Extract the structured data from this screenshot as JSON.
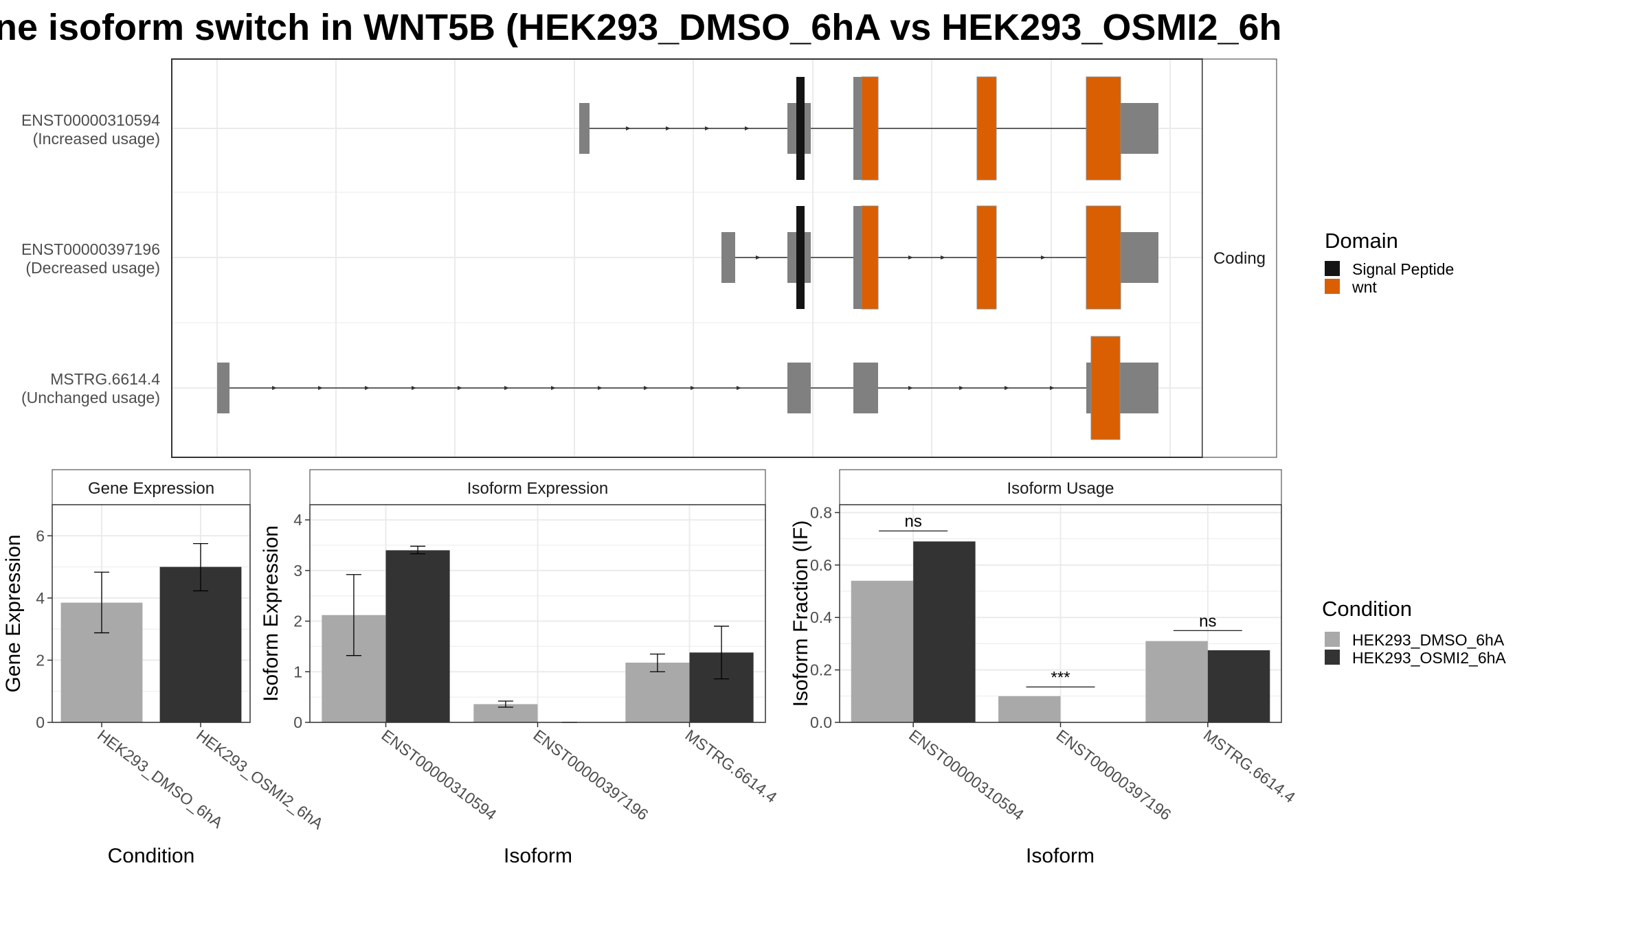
{
  "title": "ne isoform switch in WNT5B (HEK293_DMSO_6hA vs HEK293_OSMI2_6h",
  "colors": {
    "condition1": "#a9a9a9",
    "condition2": "#333333",
    "utr": "#808080",
    "signal_peptide": "#141414",
    "wnt": "#d95f02",
    "grid": "#ebebeb",
    "panel_border": "#333333",
    "strip_fill": "#ffffff"
  },
  "structure": {
    "facet_label": "Coding",
    "tracks": [
      {
        "id": "ENST00000310594",
        "usage": "(Increased usage)"
      },
      {
        "id": "ENST00000397196",
        "usage": "(Decreased usage)"
      },
      {
        "id": "MSTRG.6614.4",
        "usage": "(Unchanged usage)"
      }
    ]
  },
  "domain_legend": {
    "title": "Domain",
    "items": [
      {
        "label": "Signal Peptide",
        "color": "#141414"
      },
      {
        "label": "wnt",
        "color": "#d95f02"
      }
    ]
  },
  "condition_legend": {
    "title": "Condition",
    "items": [
      {
        "label": "HEK293_DMSO_6hA",
        "color": "#a9a9a9"
      },
      {
        "label": "HEK293_OSMI2_6hA",
        "color": "#333333"
      }
    ]
  },
  "chart_data": [
    {
      "type": "bar",
      "title": "Gene Expression",
      "xlabel": "Condition",
      "ylabel": "Gene Expression",
      "ylim": [
        0,
        7
      ],
      "yticks": [
        0,
        2,
        4,
        6
      ],
      "categories": [
        "HEK293_DMSO_6hA",
        "HEK293_OSMI2_6hA"
      ],
      "values": [
        3.85,
        5.0
      ],
      "errors": [
        [
          2.88,
          4.83
        ],
        [
          4.23,
          5.75
        ]
      ]
    },
    {
      "type": "bar",
      "title": "Isoform Expression",
      "xlabel": "Isoform",
      "ylabel": "Isoform Expression",
      "ylim": [
        0,
        4.3
      ],
      "yticks": [
        0,
        1,
        2,
        3,
        4
      ],
      "categories": [
        "ENST00000310594",
        "ENST00000397196",
        "MSTRG.6614.4"
      ],
      "series": [
        {
          "name": "HEK293_DMSO_6hA",
          "values": [
            2.12,
            0.36,
            1.18
          ],
          "errors": [
            [
              1.32,
              2.92
            ],
            [
              0.3,
              0.42
            ],
            [
              1.0,
              1.35
            ]
          ]
        },
        {
          "name": "HEK293_OSMI2_6hA",
          "values": [
            3.4,
            0.0,
            1.38
          ],
          "errors": [
            [
              3.33,
              3.48
            ],
            [
              0.0,
              0.0
            ],
            [
              0.86,
              1.9
            ]
          ]
        }
      ]
    },
    {
      "type": "bar",
      "title": "Isoform Usage",
      "xlabel": "Isoform",
      "ylabel": "Isoform Fraction (IF)",
      "ylim": [
        0,
        0.83
      ],
      "yticks": [
        0.0,
        0.2,
        0.4,
        0.6,
        0.8
      ],
      "ytick_labels": [
        "0.0",
        "0.2",
        "0.4",
        "0.6",
        "0.8"
      ],
      "categories": [
        "ENST00000310594",
        "ENST00000397196",
        "MSTRG.6614.4"
      ],
      "series": [
        {
          "name": "HEK293_DMSO_6hA",
          "values": [
            0.54,
            0.1,
            0.31
          ]
        },
        {
          "name": "HEK293_OSMI2_6hA",
          "values": [
            0.69,
            0.0,
            0.275
          ]
        }
      ],
      "significance": [
        {
          "label": "ns",
          "y": 0.73
        },
        {
          "label": "***",
          "y": 0.135
        },
        {
          "label": "ns",
          "y": 0.35
        }
      ]
    }
  ]
}
